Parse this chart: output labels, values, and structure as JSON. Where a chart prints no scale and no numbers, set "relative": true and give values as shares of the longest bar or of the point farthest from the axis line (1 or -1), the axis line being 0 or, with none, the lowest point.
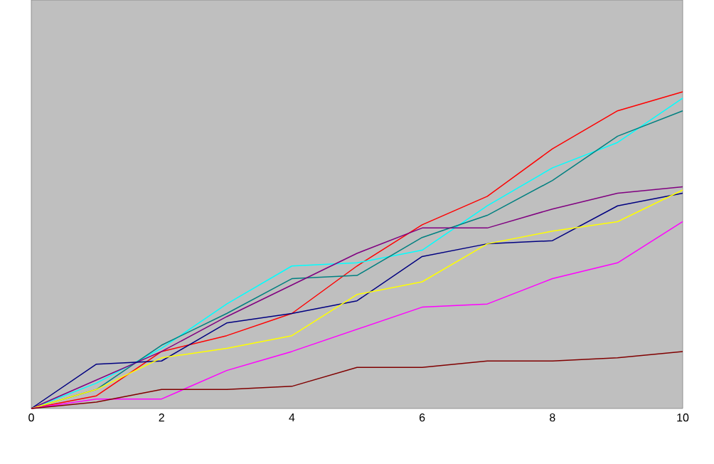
{
  "chart_data": {
    "type": "line",
    "relative": true,
    "x": [
      0,
      1,
      2,
      3,
      4,
      5,
      6,
      7,
      8,
      9,
      10
    ],
    "xlim": [
      0,
      10
    ],
    "xticks": [
      0,
      2,
      4,
      6,
      8,
      10
    ],
    "grid": false,
    "tick_labels": "x",
    "series": [
      {
        "color": "#ff0000",
        "values": [
          0,
          0.04,
          0.18,
          0.23,
          0.3,
          0.45,
          0.58,
          0.67,
          0.82,
          0.94,
          1
        ]
      },
      {
        "color": "#00ffff",
        "values": [
          0,
          0.08,
          0.19,
          0.33,
          0.45,
          0.46,
          0.5,
          0.64,
          0.76,
          0.84,
          0.98
        ]
      },
      {
        "color": "#008080",
        "values": [
          0,
          0.06,
          0.2,
          0.3,
          0.41,
          0.42,
          0.54,
          0.61,
          0.72,
          0.86,
          0.94
        ]
      },
      {
        "color": "#800080",
        "values": [
          0,
          0.09,
          0.18,
          0.29,
          0.39,
          0.49,
          0.57,
          0.57,
          0.63,
          0.68,
          0.7
        ]
      },
      {
        "color": "#000080",
        "values": [
          0,
          0.14,
          0.15,
          0.27,
          0.3,
          0.34,
          0.48,
          0.52,
          0.53,
          0.64,
          0.68
        ]
      },
      {
        "color": "#ffff00",
        "values": [
          0,
          0.06,
          0.16,
          0.19,
          0.23,
          0.36,
          0.4,
          0.52,
          0.56,
          0.59,
          0.69
        ]
      },
      {
        "color": "#ff00ff",
        "values": [
          0,
          0.03,
          0.03,
          0.12,
          0.18,
          0.25,
          0.32,
          0.33,
          0.41,
          0.46,
          0.59
        ]
      },
      {
        "color": "#800000",
        "values": [
          0,
          0.02,
          0.06,
          0.06,
          0.07,
          0.13,
          0.13,
          0.15,
          0.15,
          0.16,
          0.18
        ]
      }
    ]
  }
}
